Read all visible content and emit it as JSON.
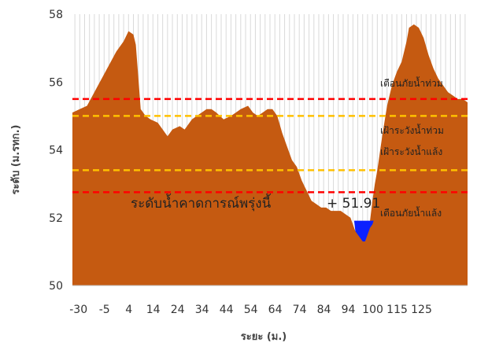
{
  "chart_data": {
    "type": "area",
    "xlabel": "ระยะ (ม.)",
    "ylabel": "ระดับ (ม.รทก.)",
    "xlim": [
      -35,
      127
    ],
    "ylim": [
      50,
      58
    ],
    "yticks": [
      50,
      52,
      54,
      56,
      58
    ],
    "xticks": [
      -30,
      -5,
      4,
      14,
      24,
      34,
      44,
      54,
      64,
      74,
      84,
      94,
      100,
      115,
      125
    ],
    "grid": "vertical",
    "cross_section": {
      "color": "#c55a11",
      "points": [
        [
          -35,
          55.1
        ],
        [
          -32,
          55.2
        ],
        [
          -29,
          55.3
        ],
        [
          -26,
          55.7
        ],
        [
          -23,
          56.1
        ],
        [
          -20,
          56.5
        ],
        [
          -17,
          56.9
        ],
        [
          -14,
          57.2
        ],
        [
          -12,
          57.5
        ],
        [
          -10,
          57.4
        ],
        [
          -9,
          57.1
        ],
        [
          -7,
          55.2
        ],
        [
          -5,
          55.0
        ],
        [
          -3,
          54.9
        ],
        [
          0,
          54.8
        ],
        [
          2,
          54.6
        ],
        [
          4,
          54.4
        ],
        [
          6,
          54.6
        ],
        [
          9,
          54.7
        ],
        [
          11,
          54.6
        ],
        [
          14,
          54.9
        ],
        [
          16,
          55.0
        ],
        [
          18,
          55.1
        ],
        [
          20,
          55.2
        ],
        [
          22,
          55.2
        ],
        [
          24,
          55.1
        ],
        [
          27,
          54.9
        ],
        [
          30,
          55.0
        ],
        [
          32,
          55.1
        ],
        [
          34,
          55.2
        ],
        [
          37,
          55.3
        ],
        [
          39,
          55.1
        ],
        [
          41,
          55.0
        ],
        [
          43,
          55.1
        ],
        [
          45,
          55.2
        ],
        [
          47,
          55.2
        ],
        [
          49,
          55.0
        ],
        [
          51,
          54.5
        ],
        [
          53,
          54.1
        ],
        [
          55,
          53.7
        ],
        [
          57,
          53.5
        ],
        [
          59,
          53.1
        ],
        [
          61,
          52.8
        ],
        [
          63,
          52.5
        ],
        [
          65,
          52.4
        ],
        [
          67,
          52.3
        ],
        [
          69,
          52.3
        ],
        [
          71,
          52.2
        ],
        [
          73,
          52.2
        ],
        [
          75,
          52.2
        ],
        [
          77,
          52.1
        ],
        [
          79,
          52.0
        ],
        [
          81,
          51.6
        ],
        [
          82,
          51.6
        ],
        [
          83,
          51.5
        ],
        [
          84,
          51.3
        ],
        [
          85,
          51.3
        ],
        [
          86,
          51.6
        ],
        [
          87,
          51.9
        ],
        [
          88,
          52.5
        ],
        [
          89,
          53.0
        ],
        [
          90,
          53.4
        ],
        [
          92,
          54.4
        ],
        [
          94,
          55.3
        ],
        [
          96,
          55.9
        ],
        [
          98,
          56.3
        ],
        [
          100,
          56.6
        ],
        [
          102,
          57.2
        ],
        [
          103,
          57.6
        ],
        [
          105,
          57.7
        ],
        [
          107,
          57.6
        ],
        [
          109,
          57.3
        ],
        [
          111,
          56.8
        ],
        [
          113,
          56.4
        ],
        [
          115,
          56.1
        ],
        [
          117,
          55.9
        ],
        [
          119,
          55.7
        ],
        [
          121,
          55.6
        ],
        [
          123,
          55.5
        ],
        [
          125,
          55.5
        ],
        [
          127,
          55.4
        ]
      ]
    },
    "water": {
      "color": "#0b21ff",
      "level": 51.91,
      "points": [
        [
          80.5,
          51.91
        ],
        [
          88.5,
          51.91
        ],
        [
          88,
          51.8
        ],
        [
          87,
          51.7
        ],
        [
          86,
          51.5
        ],
        [
          85,
          51.3
        ],
        [
          84,
          51.3
        ],
        [
          83,
          51.4
        ],
        [
          82,
          51.5
        ],
        [
          81,
          51.6
        ],
        [
          80.5,
          51.91
        ]
      ]
    },
    "reference_lines": [
      {
        "label": "เตือนภัยน้ำท่วม",
        "y": 55.5,
        "color": "#ff0000"
      },
      {
        "label": "เฝ้าระวังน้ำท่วม",
        "y": 55.0,
        "color": "#ffc000"
      },
      {
        "label": "เฝ้าระวังน้ำแล้ง",
        "y": 53.4,
        "color": "#ffc000"
      },
      {
        "label": "เตือนภัยน้ำแล้ง",
        "y": 52.75,
        "color": "#ff0000"
      }
    ],
    "forecast": {
      "label": "ระดับน้ำคาดการณ์พรุ่งนี้",
      "value_text": "+ 51.91",
      "value": 51.91
    }
  }
}
